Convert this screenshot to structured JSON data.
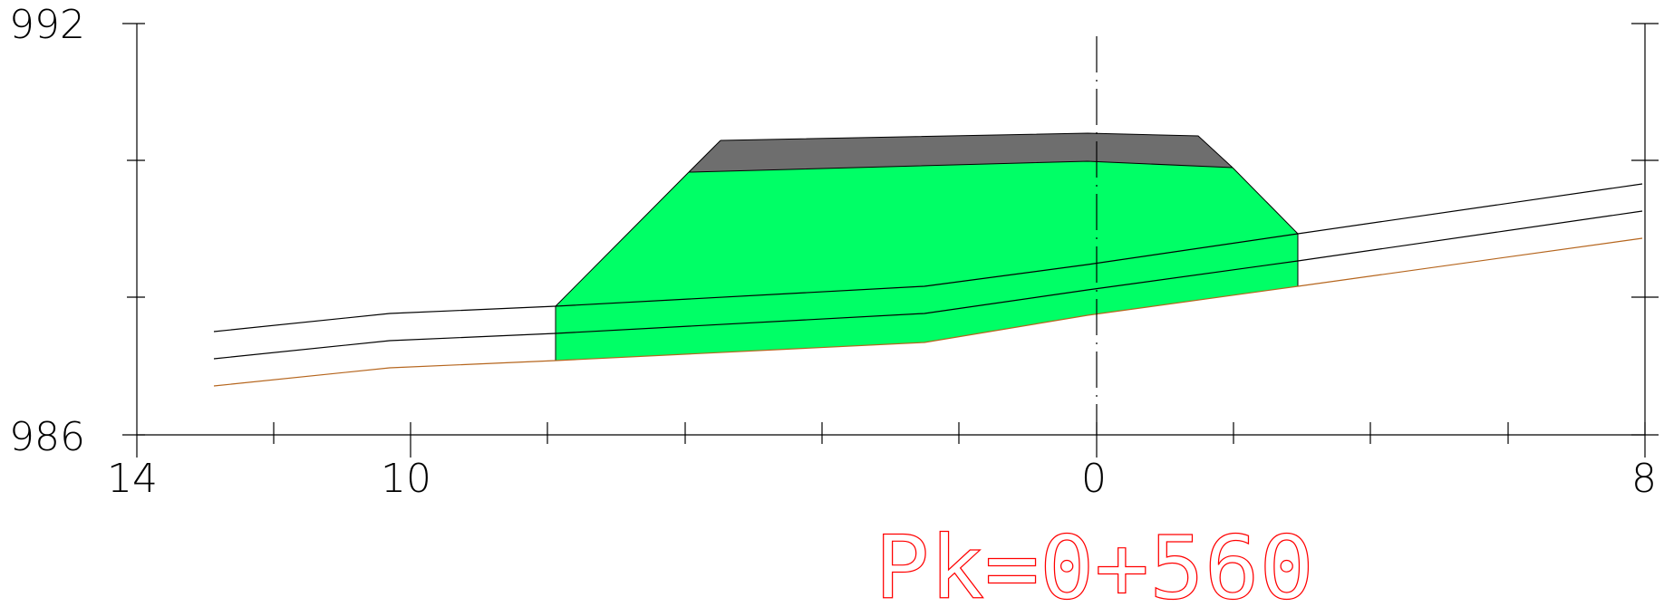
{
  "section": {
    "pk_label": "Pk=0+560",
    "elevation_max_label": "992",
    "elevation_min_label": "986",
    "offset_left_label": "14",
    "offset_mid_left_label": "10",
    "offset_center_label": "0",
    "offset_right_label": "8"
  },
  "chart_data": {
    "type": "cross-section",
    "ylim": [
      986,
      992
    ],
    "xlim": [
      -14,
      8
    ],
    "y_tick_labels": [
      "992",
      "986"
    ],
    "x_tick_labels": [
      "14",
      "10",
      "0",
      "8"
    ],
    "annotation": "Pk=0+560",
    "colors": {
      "fill_embankment": "#00ff66",
      "pavement_layer": "#6e6e6e",
      "ground_line": "#b5651d",
      "axis": "#000000",
      "label": "#ff0000"
    },
    "layers": [
      {
        "role": "pavement",
        "points": [
          [
            -6,
            990.2
          ],
          [
            -5.5,
            990.4
          ],
          [
            1.5,
            990.5
          ],
          [
            2,
            990.1
          ],
          [
            0,
            990.2
          ]
        ]
      },
      {
        "role": "embankment-top",
        "points": [
          [
            -6,
            990.2
          ],
          [
            0,
            990.2
          ],
          [
            2,
            990.1
          ]
        ]
      },
      {
        "role": "embankment-toe",
        "points": [
          [
            -8,
            987.9
          ],
          [
            -2.5,
            987.3
          ],
          [
            0,
            987.7
          ],
          [
            3,
            988.2
          ]
        ]
      }
    ]
  }
}
